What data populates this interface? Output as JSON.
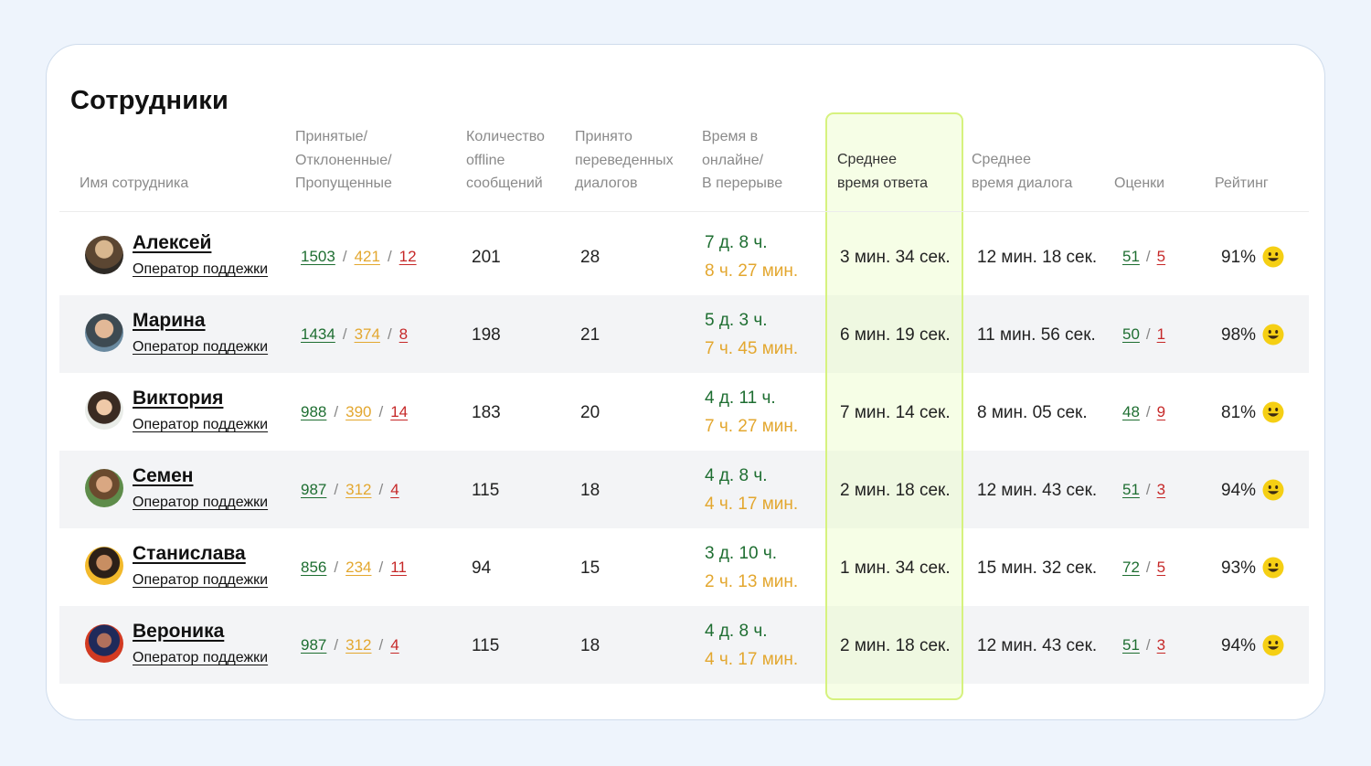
{
  "title": "Сотрудники",
  "headers": {
    "name": "Имя сотрудника",
    "accepted": "Принятые/\nОтклоненные/\nПропущенные",
    "offline": "Количество\noffline\nсообщений",
    "transferred": "Принято\nпереведенных\nдиалогов",
    "online": "Время в\nонлайне/\nВ перерыве",
    "avg_response": "Среднее\nвремя ответа",
    "avg_dialog": "Среднее\nвремя диалога",
    "scores": "Оценки",
    "rating": "Рейтинг"
  },
  "colors": {
    "accepted": "#1e6e31",
    "rejected": "#e3a72f",
    "missed": "#c62828",
    "highlight_border": "#d6f27e",
    "smiley": "#f5cf14"
  },
  "rows": [
    {
      "name": "Алексей",
      "role": "Оператор поддежки",
      "accepted": "1503",
      "rejected": "421",
      "missed": "12",
      "offline": "201",
      "transferred": "28",
      "online": "7 д. 8 ч.",
      "break": "8 ч. 27 мин.",
      "avg_response": "3 мин. 34 сек.",
      "avg_dialog": "12 мин. 18 сек.",
      "score_good": "51",
      "score_bad": "5",
      "rating": "91%",
      "icon": "smiley-icon"
    },
    {
      "name": "Марина",
      "role": "Оператор поддежки",
      "accepted": "1434",
      "rejected": "374",
      "missed": "8",
      "offline": "198",
      "transferred": "21",
      "online": "5 д. 3 ч.",
      "break": "7 ч. 45 мин.",
      "avg_response": "6 мин. 19 сек.",
      "avg_dialog": "11 мин. 56 сек.",
      "score_good": "50",
      "score_bad": "1",
      "rating": "98%",
      "icon": "smiley-icon"
    },
    {
      "name": "Виктория",
      "role": "Оператор поддежки",
      "accepted": "988",
      "rejected": "390",
      "missed": "14",
      "offline": "183",
      "transferred": "20",
      "online": "4 д. 11 ч.",
      "break": "7 ч. 27 мин.",
      "avg_response": "7 мин. 14 сек.",
      "avg_dialog": "8 мин. 05 сек.",
      "score_good": "48",
      "score_bad": "9",
      "rating": "81%",
      "icon": "smiley-icon"
    },
    {
      "name": "Семен",
      "role": "Оператор поддежки",
      "accepted": "987",
      "rejected": "312",
      "missed": "4",
      "offline": "115",
      "transferred": "18",
      "online": "4 д. 8 ч.",
      "break": "4 ч. 17 мин.",
      "avg_response": "2 мин. 18 сек.",
      "avg_dialog": "12 мин. 43 сек.",
      "score_good": "51",
      "score_bad": "3",
      "rating": "94%",
      "icon": "smiley-icon"
    },
    {
      "name": "Станислава",
      "role": "Оператор поддежки",
      "accepted": "856",
      "rejected": "234",
      "missed": "11",
      "offline": "94",
      "transferred": "15",
      "online": "3 д. 10 ч.",
      "break": "2 ч. 13 мин.",
      "avg_response": "1 мин. 34 сек.",
      "avg_dialog": "15 мин. 32 сек.",
      "score_good": "72",
      "score_bad": "5",
      "rating": "93%",
      "icon": "smiley-icon"
    },
    {
      "name": "Вероника",
      "role": "Оператор поддежки",
      "accepted": "987",
      "rejected": "312",
      "missed": "4",
      "offline": "115",
      "transferred": "18",
      "online": "4 д. 8 ч.",
      "break": "4 ч. 17 мин.",
      "avg_response": "2 мин. 18 сек.",
      "avg_dialog": "12 мин. 43 сек.",
      "score_good": "51",
      "score_bad": "3",
      "rating": "94%",
      "icon": "smiley-icon"
    }
  ]
}
